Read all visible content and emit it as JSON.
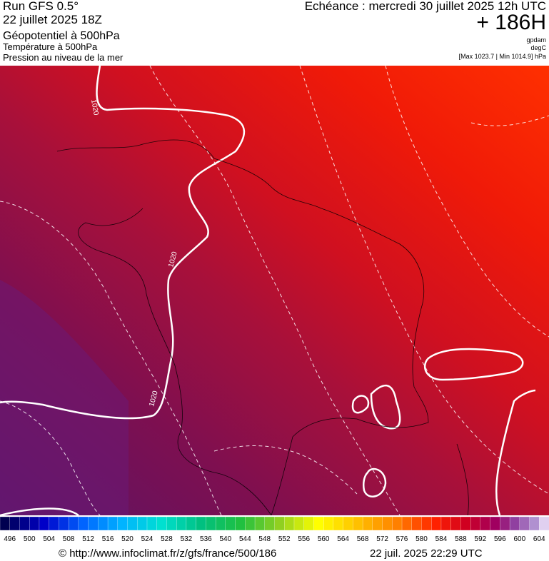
{
  "header": {
    "run": "Run GFS 0.5°",
    "run_date": "22 juillet 2025 18Z",
    "field_1": "Géopotentiel à 500hPa",
    "field_2": "Température à 500hPa",
    "field_3": "Pression au niveau de la mer",
    "forecast": "Echéance : mercredi 30 juillet 2025 12h UTC",
    "lead": "+ 186H",
    "unit_1": "gpdam",
    "unit_2": "degC",
    "range": "[Max 1023.7 | Min 1014.9] hPa"
  },
  "map": {
    "isobar_labels": [
      "1020",
      "1020",
      "1020"
    ]
  },
  "colorbar": {
    "labels": [
      496,
      500,
      504,
      508,
      512,
      516,
      520,
      524,
      528,
      532,
      536,
      540,
      544,
      548,
      552,
      556,
      560,
      564,
      568,
      572,
      576,
      580,
      584,
      588,
      592,
      596,
      600,
      604
    ]
  },
  "footer": {
    "url": "© http://www.infoclimat.fr/z/gfs/france/500/186",
    "timestamp": "22 juil. 2025 22:29 UTC"
  }
}
